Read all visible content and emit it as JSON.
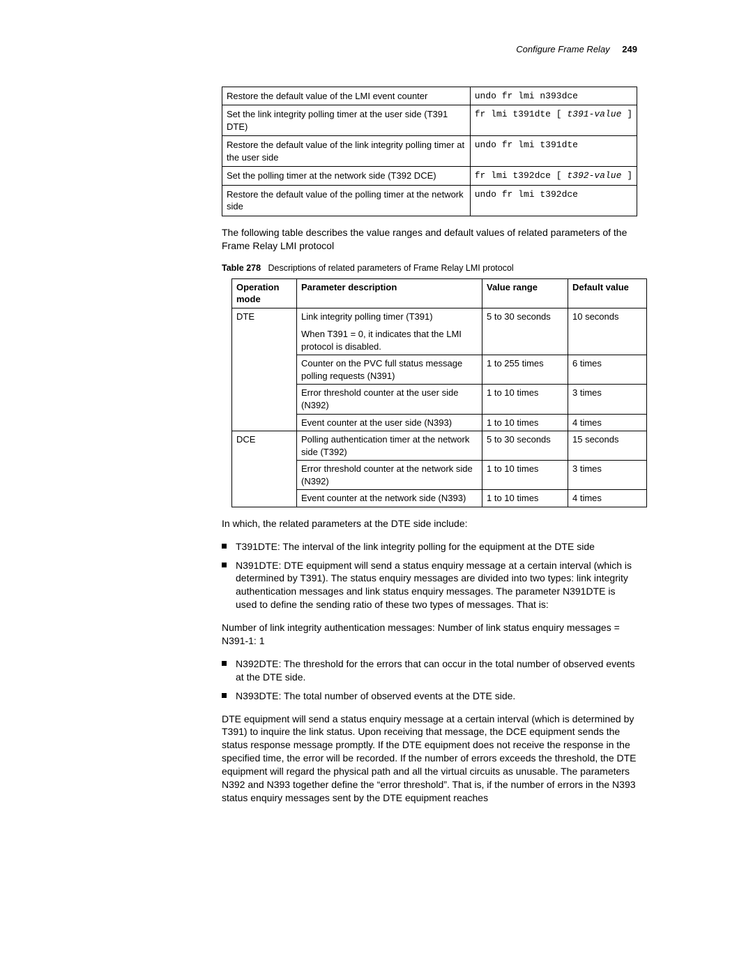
{
  "header": {
    "section": "Configure Frame Relay",
    "page": "249"
  },
  "cmdTable": {
    "rows": [
      {
        "desc": "Restore the default value of the LMI event counter",
        "cmd": {
          "plain": "undo fr lmi n393dce"
        }
      },
      {
        "desc": "Set the link integrity polling timer at the user side (T391 DTE)",
        "cmd": {
          "pre": "fr lmi t391dte [ ",
          "ital": "t391-value",
          "post": " ]"
        }
      },
      {
        "desc": "Restore the default value of the link integrity polling timer at the user side",
        "cmd": {
          "plain": "undo fr lmi t391dte"
        }
      },
      {
        "desc": "Set the polling timer at the network side (T392 DCE)",
        "cmd": {
          "pre": "fr lmi t392dce [ ",
          "ital": "t392-value",
          "post": " ]"
        }
      },
      {
        "desc": "Restore the default value of the polling timer at the network side",
        "cmd": {
          "plain": "undo fr lmi t392dce"
        }
      }
    ]
  },
  "introPara": "The following table describes the value ranges and default values of related parameters of the Frame Relay LMI protocol",
  "caption": {
    "label": "Table 278",
    "text": "Descriptions of related parameters of Frame Relay LMI protocol"
  },
  "paramsTable": {
    "headers": {
      "opmode_l1": "Operation",
      "opmode_l2": "mode",
      "param": "Parameter description",
      "range": "Value range",
      "def": "Default value"
    },
    "dte_label": "DTE",
    "dce_label": "DCE",
    "dte": [
      {
        "desc_l1": "Link integrity polling timer (T391)",
        "desc_l2": "When T391 = 0, it indicates that the LMI protocol is disabled.",
        "range": "5 to 30 seconds",
        "def": "10 seconds"
      },
      {
        "desc": "Counter on the PVC full status message polling requests (N391)",
        "range": "1 to 255 times",
        "def": "6 times"
      },
      {
        "desc": "Error threshold counter at the user side (N392)",
        "range": "1 to 10 times",
        "def": "3 times"
      },
      {
        "desc": "Event counter at the user side (N393)",
        "range": "1 to 10 times",
        "def": "4 times"
      }
    ],
    "dce": [
      {
        "desc": "Polling authentication timer at the network side (T392)",
        "range": "5 to 30 seconds",
        "def": "15 seconds"
      },
      {
        "desc": "Error threshold counter at the network side (N392)",
        "range": "1 to 10 times",
        "def": "3 times"
      },
      {
        "desc": "Event counter at the network side (N393)",
        "range": "1 to 10 times",
        "def": "4 times"
      }
    ]
  },
  "afterTable": "In which, the related parameters at the DTE side include:",
  "bullets1": [
    "T391DTE: The interval of the link integrity polling for the equipment at the DTE side",
    "N391DTE: DTE equipment will send a status enquiry message at a certain interval (which is determined by T391). The status enquiry messages are divided into two types: link integrity authentication messages and link status enquiry messages. The parameter N391DTE is used to define the sending ratio of these two types of messages. That is:"
  ],
  "midPara": "Number of link integrity authentication messages: Number of link status enquiry messages = N391-1: 1",
  "bullets2": [
    "N392DTE: The threshold for the errors that can occur in the total number of observed events at the DTE side.",
    "N393DTE: The total number of observed events at the DTE side."
  ],
  "finalPara": "DTE equipment will send a status enquiry message at a certain interval (which is determined by T391) to inquire the link status. Upon receiving that message, the DCE equipment sends the status response message promptly. If the DTE equipment does not receive the response in the specified time, the error will be recorded. If the number of errors exceeds the threshold, the DTE equipment will regard the physical path and all the virtual circuits as unusable. The parameters N392 and N393 together define the “error threshold”. That is, if the number of errors in the N393 status enquiry messages sent by the DTE equipment reaches"
}
